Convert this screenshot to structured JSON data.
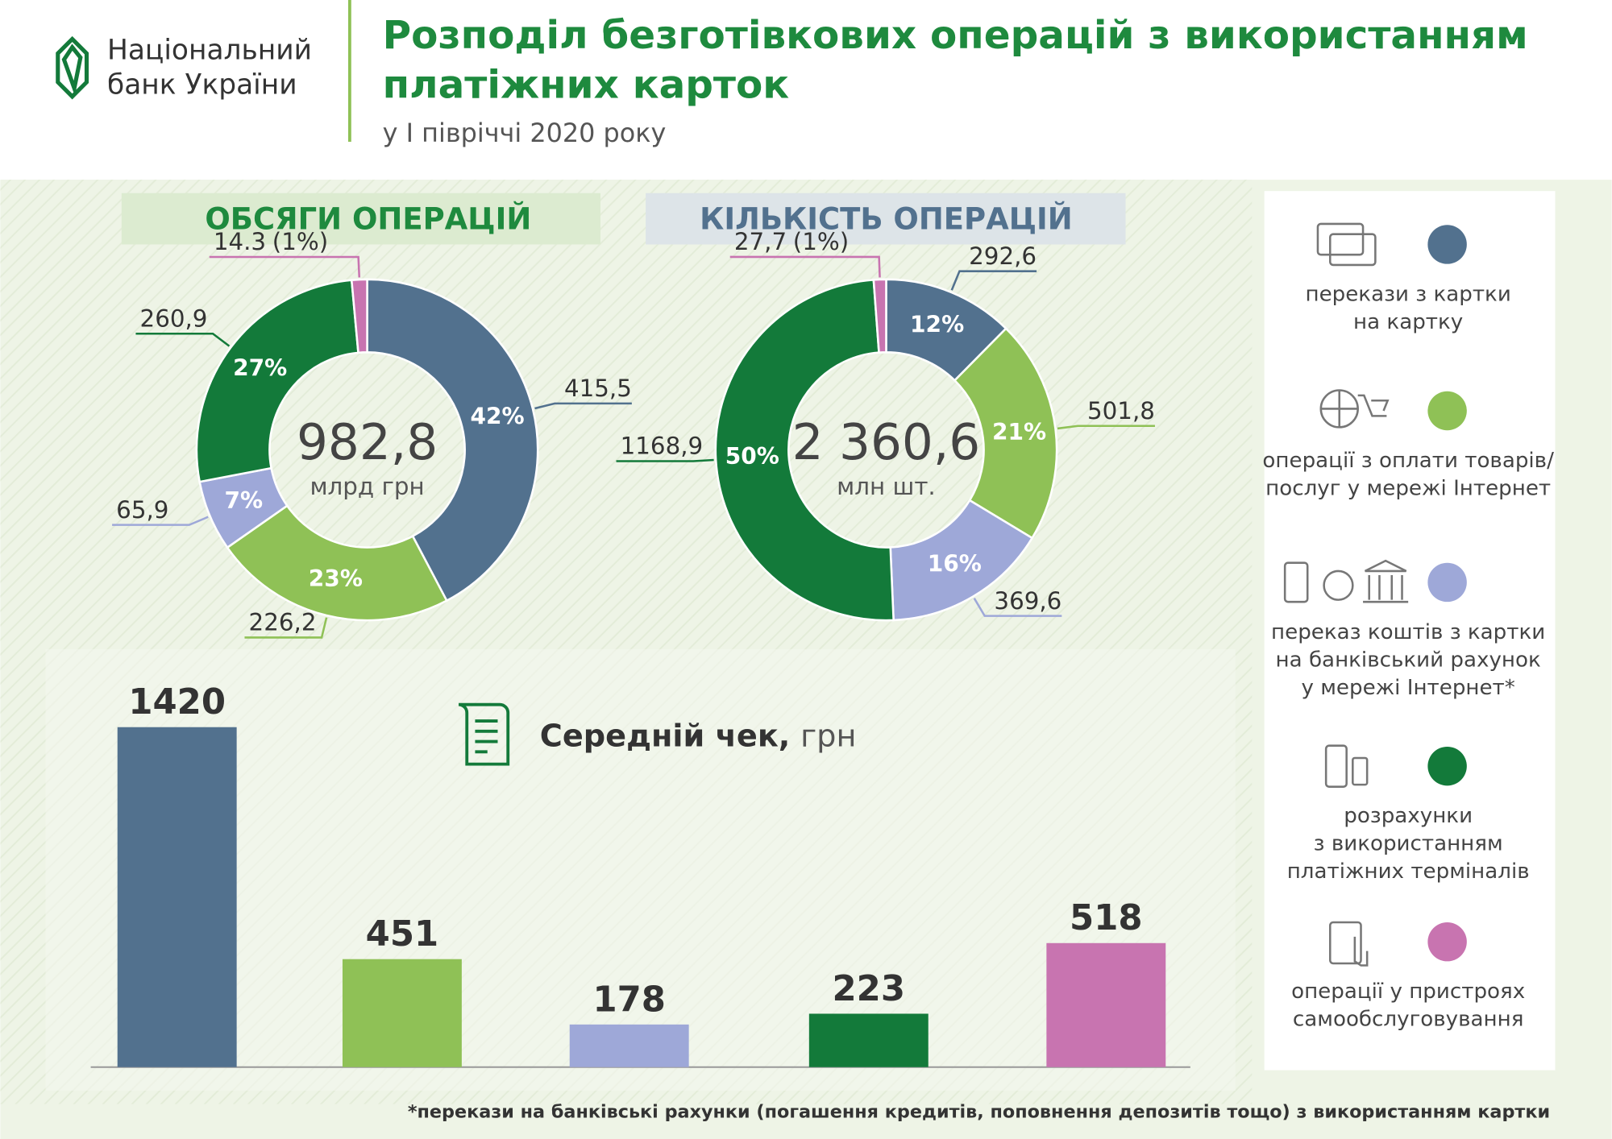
{
  "header": {
    "logo": [
      "Національний",
      "банк України"
    ],
    "title": [
      "Розподіл безготівкових операцій з використанням",
      "платіжних карток"
    ],
    "subtitle": "у І півріччі 2020 року"
  },
  "chart_data": [
    {
      "type": "donut",
      "title": "ОБСЯГИ ОПЕРАЦІЙ",
      "total": 982.8,
      "total_label": "982,8",
      "unit": "млрд грн",
      "values": [
        415.5,
        226.2,
        65.9,
        260.9,
        14.3
      ],
      "value_labels": [
        "415,5",
        "226,2",
        "65,9",
        "260,9",
        "14.3"
      ],
      "percents": [
        42,
        23,
        7,
        27,
        1
      ],
      "percent_labels": [
        "42%",
        "23%",
        "7%",
        "27%",
        "(1%)"
      ],
      "colors": [
        "#52718e",
        "#8fc156",
        "#9ea8d8",
        "#137a3a",
        "#c874b0"
      ]
    },
    {
      "type": "donut",
      "title": "КІЛЬКІСТЬ ОПЕРАЦІЙ",
      "total": 2360.6,
      "total_label": "2 360,6",
      "unit": "млн шт.",
      "values": [
        292.6,
        501.8,
        369.6,
        1168.9,
        27.7
      ],
      "value_labels": [
        "292,6",
        "501,8",
        "369,6",
        "1168,9",
        "27,7"
      ],
      "percents": [
        12,
        21,
        16,
        50,
        1
      ],
      "percent_labels": [
        "12%",
        "21%",
        "16%",
        "50%",
        "(1%)"
      ],
      "colors": [
        "#52718e",
        "#8fc156",
        "#9ea8d8",
        "#137a3a",
        "#c874b0"
      ]
    },
    {
      "type": "bar",
      "title": "Середній чек,",
      "unit": "грн",
      "values": [
        1420,
        451,
        178,
        223,
        518
      ],
      "colors": [
        "#52718e",
        "#8fc156",
        "#9ea8d8",
        "#137a3a",
        "#c874b0"
      ]
    }
  ],
  "legend": [
    {
      "lines": [
        "перекази з картки",
        "на картку"
      ],
      "color": "#52718e"
    },
    {
      "lines": [
        "операції з оплати товарів/",
        "послуг у мережі Інтернет"
      ],
      "color": "#8fc156"
    },
    {
      "lines": [
        "переказ коштів з картки",
        "на банківський рахунок",
        "у мережі Інтернет*"
      ],
      "color": "#9ea8d8"
    },
    {
      "lines": [
        "розрахунки",
        "з використанням",
        "платіжних терміналів"
      ],
      "color": "#137a3a"
    },
    {
      "lines": [
        "операції у пристроях",
        "самообслуговування"
      ],
      "color": "#c874b0"
    }
  ],
  "footnote": "*перекази на банківські рахунки (погашення кредитів, поповнення депозитів тощо) з використанням картки"
}
